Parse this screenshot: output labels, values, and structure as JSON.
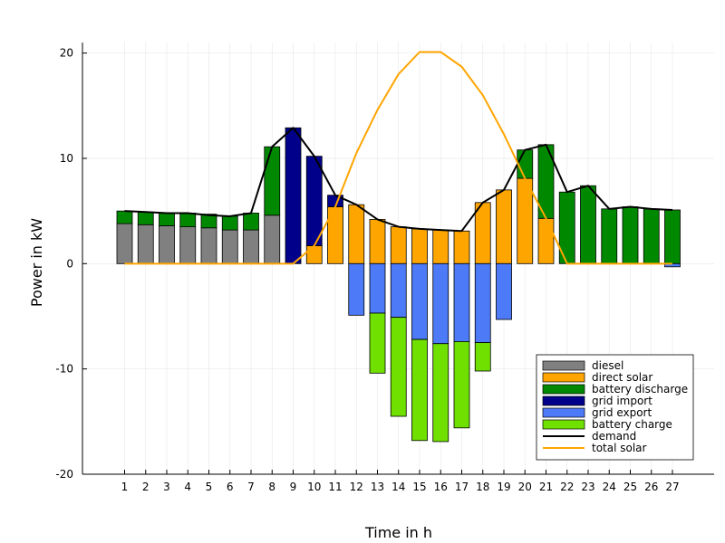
{
  "chart_data": {
    "type": "bar",
    "stacked": true,
    "xlabel": "Time in h",
    "ylabel": "Power in kW",
    "ylim": [
      -20,
      21
    ],
    "yticks": [
      -20,
      -10,
      0,
      10,
      20
    ],
    "grid": true,
    "legend_position": "bottom-right",
    "categories": [
      "1",
      "2",
      "3",
      "4",
      "5",
      "6",
      "7",
      "8",
      "9",
      "10",
      "11",
      "12",
      "13",
      "14",
      "15",
      "16",
      "17",
      "18",
      "19",
      "20",
      "21",
      "22",
      "23",
      "24",
      "25",
      "26",
      "27"
    ],
    "series": [
      {
        "name": "diesel",
        "color": "#808080",
        "kind": "bar",
        "values": [
          3.8,
          3.7,
          3.6,
          3.5,
          3.4,
          3.2,
          3.2,
          4.6,
          0,
          0,
          0,
          0,
          0,
          0,
          0,
          0,
          0,
          0,
          0,
          0,
          0,
          0,
          0,
          0,
          0,
          0,
          0
        ]
      },
      {
        "name": "direct solar",
        "color": "#ffa500",
        "kind": "bar",
        "values": [
          0,
          0,
          0,
          0,
          0,
          0,
          0,
          0,
          0,
          1.7,
          5.4,
          5.6,
          4.2,
          3.5,
          3.3,
          3.2,
          3.1,
          5.8,
          7.0,
          8.1,
          4.3,
          0,
          0,
          0,
          0,
          0,
          0
        ]
      },
      {
        "name": "battery discharge",
        "color": "#008800",
        "kind": "bar",
        "values": [
          1.2,
          1.2,
          1.2,
          1.3,
          1.3,
          1.3,
          1.6,
          6.5,
          0,
          0,
          0,
          0,
          0,
          0,
          0,
          0,
          0,
          0,
          0,
          2.7,
          7.0,
          6.8,
          7.4,
          5.2,
          5.4,
          5.2,
          5.1
        ]
      },
      {
        "name": "grid import",
        "color": "#00008b",
        "kind": "bar",
        "values": [
          0,
          0,
          0,
          0,
          0,
          0,
          0,
          0,
          12.9,
          8.5,
          1.1,
          0,
          0,
          0,
          0,
          0,
          0,
          0,
          0,
          0,
          0,
          0,
          0,
          0,
          0,
          0,
          0
        ]
      },
      {
        "name": "grid export",
        "color": "#4d7af7",
        "kind": "bar",
        "values": [
          0,
          0,
          0,
          0,
          0,
          0,
          0,
          0,
          0,
          0,
          0,
          -4.9,
          -4.7,
          -5.1,
          -7.2,
          -7.6,
          -7.4,
          -7.5,
          -5.3,
          0,
          0,
          0,
          0,
          0,
          0,
          0,
          -0.3
        ]
      },
      {
        "name": "battery charge",
        "color": "#70e000",
        "kind": "bar",
        "values": [
          0,
          0,
          0,
          0,
          0,
          0,
          0,
          0,
          0,
          0,
          0,
          0,
          -5.7,
          -9.4,
          -9.6,
          -9.3,
          -8.2,
          -2.7,
          0,
          0,
          0,
          0,
          0,
          0,
          0,
          0,
          0
        ]
      },
      {
        "name": "demand",
        "color": "#000000",
        "kind": "line",
        "values": [
          5.0,
          4.9,
          4.8,
          4.8,
          4.6,
          4.5,
          4.8,
          11.1,
          12.9,
          10.2,
          6.5,
          5.6,
          4.2,
          3.5,
          3.3,
          3.2,
          3.1,
          5.8,
          7.0,
          10.8,
          11.3,
          6.8,
          7.4,
          5.2,
          5.4,
          5.2,
          5.1
        ]
      },
      {
        "name": "total solar",
        "color": "#ffa500",
        "kind": "line",
        "values": [
          0,
          0,
          0,
          0,
          0,
          0,
          0,
          0,
          0,
          1.7,
          5.4,
          10.5,
          14.6,
          18.0,
          20.1,
          20.1,
          18.7,
          16.0,
          12.3,
          8.1,
          4.3,
          0,
          0,
          0,
          0,
          0,
          0
        ]
      }
    ]
  }
}
